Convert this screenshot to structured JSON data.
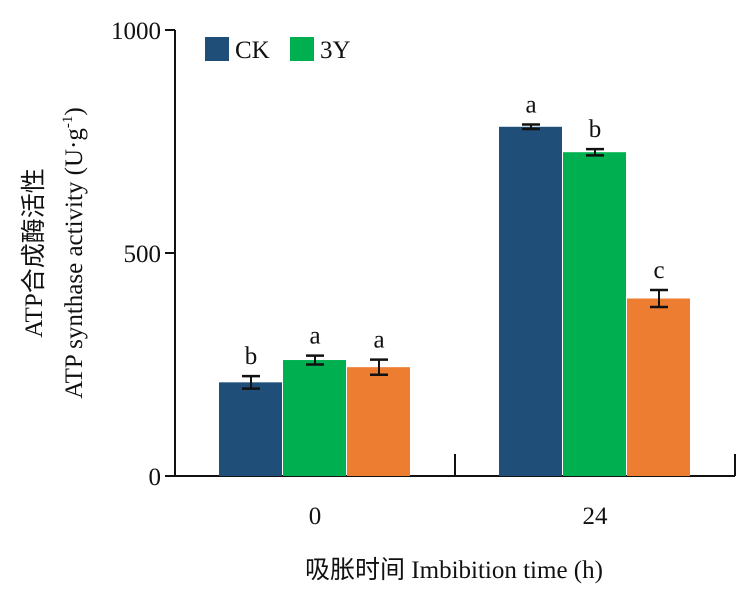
{
  "chart_data": {
    "type": "bar",
    "categories": [
      "0",
      "24"
    ],
    "series": [
      {
        "name": "CK",
        "color": "#1f4e79",
        "values": [
          210,
          783
        ],
        "errors": [
          14,
          5
        ],
        "letters": [
          "b",
          "a"
        ]
      },
      {
        "name": "3Y",
        "color": "#00b050",
        "values": [
          260,
          726
        ],
        "errors": [
          10,
          7
        ],
        "letters": [
          "a",
          "b"
        ]
      },
      {
        "name": "",
        "color": "#ed7d31",
        "values": [
          244,
          398
        ],
        "errors": [
          17,
          19
        ],
        "letters": [
          "a",
          "c"
        ]
      }
    ],
    "ylim": [
      0,
      1000
    ],
    "yticks": [
      0,
      500,
      1000
    ],
    "ylabel_cn": "ATP合成酶活性",
    "ylabel_en_prefix": "ATP synthase activity (U·g",
    "ylabel_en_sup": "-1",
    "ylabel_en_suffix": ")",
    "xlabel": "吸胀时间 Imbibition time (h)",
    "legend_position": "top-left",
    "grid": false
  }
}
